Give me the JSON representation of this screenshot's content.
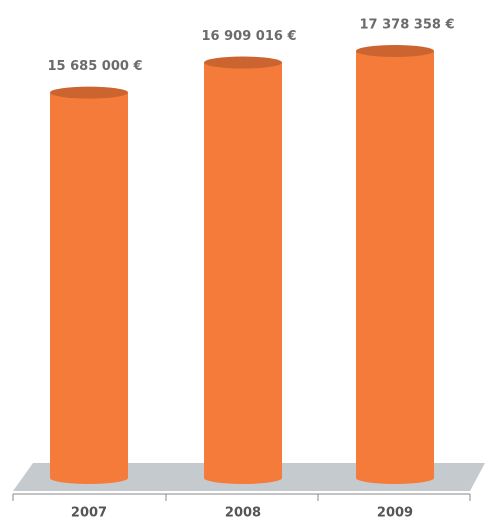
{
  "chart_data": {
    "type": "bar",
    "categories": [
      "2007",
      "2008",
      "2009"
    ],
    "values": [
      15685000,
      16909016,
      17378358
    ],
    "value_labels": [
      "15 685 000 €",
      "16 909 016 €",
      "17 378 358 €"
    ],
    "color": "#f47b3a"
  }
}
